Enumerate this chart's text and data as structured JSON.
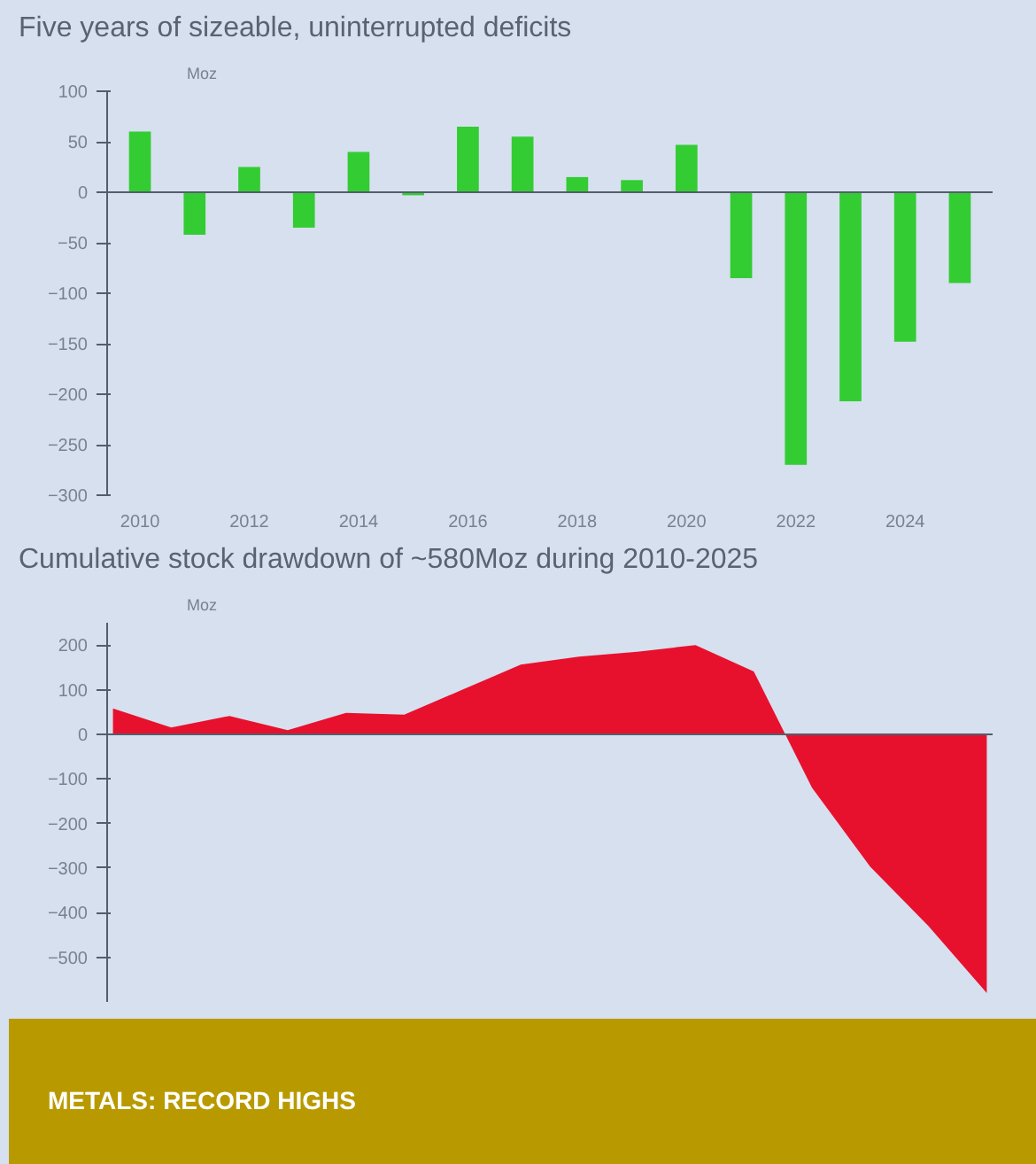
{
  "chart_data": [
    {
      "type": "bar",
      "title": "Five years of sizeable, uninterrupted deficits",
      "ylabel": "Moz",
      "x": [
        2010,
        2011,
        2012,
        2013,
        2014,
        2015,
        2016,
        2017,
        2018,
        2019,
        2020,
        2021,
        2022,
        2023,
        2024,
        2025
      ],
      "series": [
        {
          "color": "#33cc33",
          "values": [
            60,
            -42,
            25,
            -35,
            40,
            -3,
            65,
            55,
            15,
            12,
            47,
            -85,
            -270,
            -207,
            -148,
            -90
          ]
        }
      ],
      "xlim": [
        2009.4,
        2025.6
      ],
      "xticks": [
        2010,
        2012,
        2014,
        2016,
        2018,
        2020,
        2022,
        2024
      ],
      "ylim": [
        -300,
        100
      ],
      "yticks": [
        -300,
        -250,
        -200,
        -150,
        -100,
        -50,
        0,
        50,
        100
      ]
    },
    {
      "type": "area",
      "title": "Cumulative stock drawdown of ~580Moz during 2010-2025",
      "ylabel": "Moz",
      "categories": [
        null,
        null,
        null,
        null,
        null,
        null,
        null,
        null,
        null,
        null,
        null,
        null,
        null,
        null,
        null,
        null
      ],
      "series": [
        {
          "color": "#e8112d",
          "values": [
            58,
            15,
            41,
            9,
            48,
            44,
            100,
            156,
            174,
            185,
            200,
            141,
            -120,
            -297,
            -430,
            -580
          ]
        }
      ],
      "ylim": [
        -600,
        250
      ],
      "yticks": [
        -500,
        -400,
        -300,
        -200,
        -100,
        0,
        100,
        200
      ],
      "annotations": [
        "METALS: RECORD HIGHS"
      ]
    }
  ]
}
